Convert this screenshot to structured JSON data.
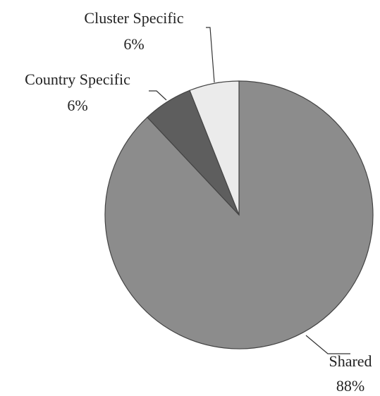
{
  "chart_data": {
    "type": "pie",
    "categories": [
      "Shared",
      "Country Specific",
      "Cluster Specific"
    ],
    "values": [
      88,
      6,
      6
    ],
    "value_labels": [
      "88%",
      "6%",
      "6%"
    ],
    "colors": [
      "#8c8c8c",
      "#5e5e5e",
      "#ebebeb"
    ]
  }
}
